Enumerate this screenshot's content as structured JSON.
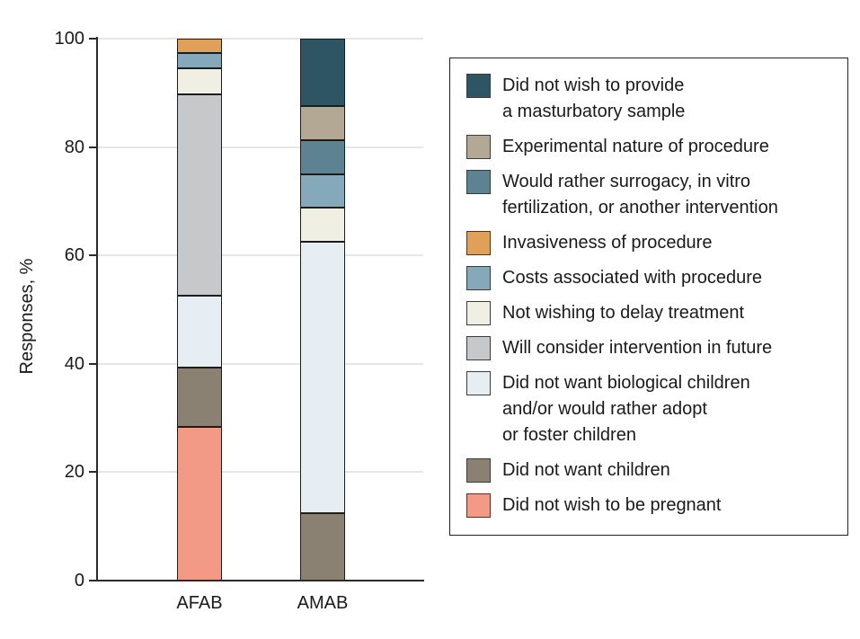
{
  "chart_data": {
    "type": "bar",
    "stacked": true,
    "title": "",
    "xlabel": "",
    "ylabel": "Responses, %",
    "ylim": [
      0,
      100
    ],
    "grid": true,
    "legend_position": "right",
    "y_ticks": [
      "0",
      "20",
      "40",
      "60",
      "80",
      "100"
    ],
    "categories": [
      "AFAB",
      "AMAB"
    ],
    "series": [
      {
        "name": "Did not wish to be pregnant",
        "color": "#f39a87",
        "values": [
          28.3,
          0
        ]
      },
      {
        "name": "Did not want children",
        "color": "#8a8173",
        "values": [
          11.0,
          12.5
        ]
      },
      {
        "name": "Did not want biological children and/or would rather adopt or foster children",
        "color": "#e7eef3",
        "values": [
          13.2,
          50.0
        ]
      },
      {
        "name": "Will consider intervention in future",
        "color": "#c6c8ca",
        "values": [
          37.2,
          0
        ]
      },
      {
        "name": "Not wishing to delay treatment",
        "color": "#f0efe3",
        "values": [
          4.8,
          6.25
        ]
      },
      {
        "name": "Costs associated with procedure",
        "color": "#85a9ba",
        "values": [
          2.9,
          6.25
        ]
      },
      {
        "name": "Invasiveness of procedure",
        "color": "#e1a05a",
        "values": [
          2.6,
          0
        ]
      },
      {
        "name": "Would rather surrogacy, in vitro fertilization, or another intervention",
        "color": "#5d8291",
        "values": [
          0,
          6.25
        ]
      },
      {
        "name": "Experimental nature of procedure",
        "color": "#b2a893",
        "values": [
          0,
          6.25
        ]
      },
      {
        "name": "Did not wish to provide a masturbatory sample",
        "color": "#2d5564",
        "values": [
          0,
          12.5
        ]
      }
    ]
  },
  "legend": {
    "items": [
      {
        "color": "#2d5564",
        "lines": [
          "Did not wish to provide",
          "a masturbatory sample"
        ]
      },
      {
        "color": "#b2a893",
        "lines": [
          "Experimental nature of procedure"
        ]
      },
      {
        "color": "#5d8291",
        "lines": [
          "Would rather surrogacy, in vitro",
          "fertilization, or another intervention"
        ]
      },
      {
        "color": "#e1a05a",
        "lines": [
          "Invasiveness of procedure"
        ]
      },
      {
        "color": "#85a9ba",
        "lines": [
          "Costs associated with procedure"
        ]
      },
      {
        "color": "#f0efe3",
        "lines": [
          "Not wishing to delay treatment"
        ]
      },
      {
        "color": "#c6c8ca",
        "lines": [
          "Will consider intervention in future"
        ]
      },
      {
        "color": "#e7eef3",
        "lines": [
          "Did not want biological children",
          "and/or would rather adopt",
          "or foster children"
        ]
      },
      {
        "color": "#8a8173",
        "lines": [
          "Did not want children"
        ]
      },
      {
        "color": "#f39a87",
        "lines": [
          "Did not wish to be pregnant"
        ]
      }
    ]
  }
}
